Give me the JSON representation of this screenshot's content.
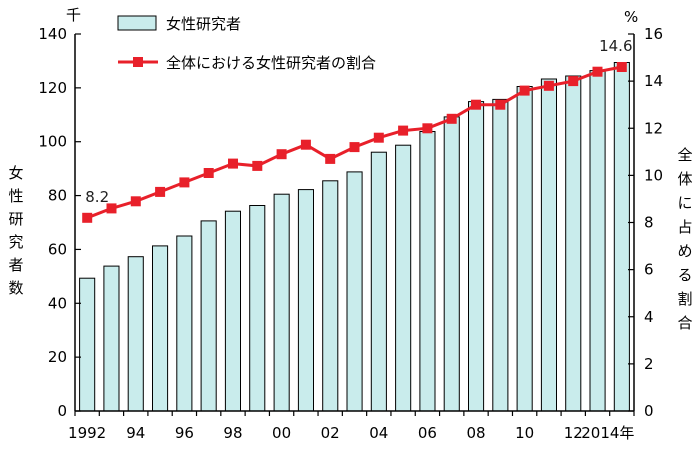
{
  "chart_data": {
    "type": "bar",
    "categories": [
      "1992",
      "1993",
      "1994",
      "1995",
      "1996",
      "1997",
      "1998",
      "1999",
      "2000",
      "2001",
      "2002",
      "2003",
      "2004",
      "2005",
      "2006",
      "2007",
      "2008",
      "2009",
      "2010",
      "2011",
      "2012",
      "2013",
      "2014"
    ],
    "x_tick_labels": [
      "1992",
      "",
      "94",
      "",
      "96",
      "",
      "98",
      "",
      "00",
      "",
      "02",
      "",
      "04",
      "",
      "06",
      "",
      "08",
      "",
      "10",
      "",
      "12",
      "",
      "2014年"
    ],
    "series": [
      {
        "name": "女性研究者",
        "type": "bar",
        "axis": "left",
        "color": "#c9ecec",
        "values": [
          49.3,
          53.8,
          57.3,
          61.3,
          65.0,
          70.6,
          74.2,
          76.3,
          80.5,
          82.2,
          85.5,
          88.8,
          96.1,
          98.7,
          103.8,
          109.2,
          114.9,
          115.7,
          120.5,
          123.3,
          124.4,
          126.4,
          129.4
        ]
      },
      {
        "name": "全体における女性研究者の割合",
        "type": "line",
        "axis": "right",
        "color": "#e8202a",
        "values": [
          8.2,
          8.6,
          8.9,
          9.3,
          9.7,
          10.1,
          10.5,
          10.4,
          10.9,
          11.3,
          10.7,
          11.2,
          11.6,
          11.9,
          12.0,
          12.4,
          13.0,
          13.0,
          13.6,
          13.8,
          14.0,
          14.4,
          14.6
        ]
      }
    ],
    "left_axis": {
      "unit": "千",
      "title": "女性研究者数",
      "ylim": [
        0,
        140
      ],
      "ticks": [
        0,
        20,
        40,
        60,
        80,
        100,
        120,
        140
      ]
    },
    "right_axis": {
      "unit": "%",
      "title": "全体に占める割合",
      "ylim": [
        0,
        16
      ],
      "ticks": [
        0,
        2,
        4,
        6,
        8,
        10,
        12,
        14,
        16
      ]
    },
    "annotations": [
      {
        "text": "8.2",
        "series": 1,
        "index": 0
      },
      {
        "text": "14.6",
        "series": 1,
        "index": 22
      }
    ],
    "legend_placement": "top-left",
    "grid": false
  }
}
